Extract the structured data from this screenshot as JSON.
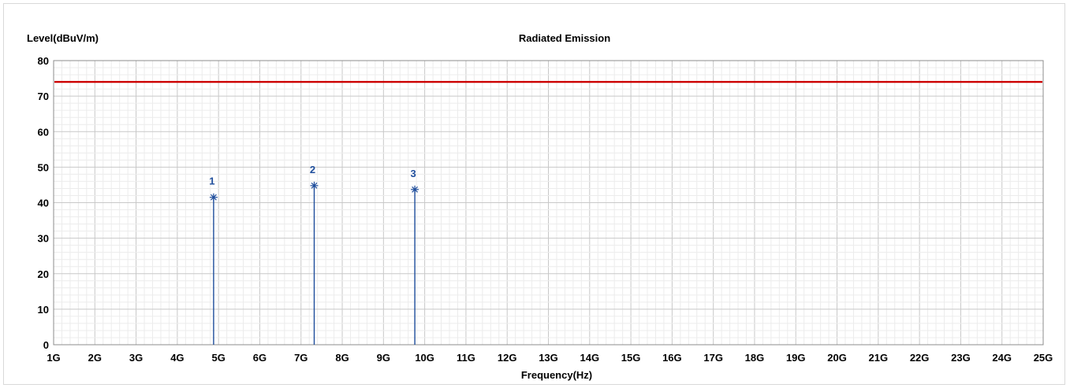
{
  "chart_data": {
    "type": "line",
    "title": "Radiated Emission",
    "ylabel": "Level(dBuV/m)",
    "xlabel": "Frequency(Hz)",
    "x_unit": "GHz",
    "xlim": [
      1,
      25
    ],
    "ylim": [
      0,
      80
    ],
    "x_ticks": [
      {
        "value": 1,
        "label": "1G"
      },
      {
        "value": 2,
        "label": "2G"
      },
      {
        "value": 3,
        "label": "3G"
      },
      {
        "value": 4,
        "label": "4G"
      },
      {
        "value": 5,
        "label": "5G"
      },
      {
        "value": 6,
        "label": "6G"
      },
      {
        "value": 7,
        "label": "7G"
      },
      {
        "value": 8,
        "label": "8G"
      },
      {
        "value": 9,
        "label": "9G"
      },
      {
        "value": 10,
        "label": "10G"
      },
      {
        "value": 11,
        "label": "11G"
      },
      {
        "value": 12,
        "label": "12G"
      },
      {
        "value": 13,
        "label": "13G"
      },
      {
        "value": 14,
        "label": "14G"
      },
      {
        "value": 15,
        "label": "15G"
      },
      {
        "value": 16,
        "label": "16G"
      },
      {
        "value": 17,
        "label": "17G"
      },
      {
        "value": 18,
        "label": "18G"
      },
      {
        "value": 19,
        "label": "19G"
      },
      {
        "value": 20,
        "label": "20G"
      },
      {
        "value": 21,
        "label": "21G"
      },
      {
        "value": 22,
        "label": "22G"
      },
      {
        "value": 23,
        "label": "23G"
      },
      {
        "value": 24,
        "label": "24G"
      },
      {
        "value": 25,
        "label": "25G"
      }
    ],
    "y_ticks": [
      {
        "value": 0,
        "label": "0"
      },
      {
        "value": 10,
        "label": "10"
      },
      {
        "value": 20,
        "label": "20"
      },
      {
        "value": 30,
        "label": "30"
      },
      {
        "value": 40,
        "label": "40"
      },
      {
        "value": 50,
        "label": "50"
      },
      {
        "value": 60,
        "label": "60"
      },
      {
        "value": 70,
        "label": "70"
      },
      {
        "value": 80,
        "label": "80"
      }
    ],
    "grid": true,
    "limit_line": {
      "value": 74,
      "color": "#cc0000"
    },
    "markers": [
      {
        "label": "1",
        "freq": 4.88,
        "level": 41.5
      },
      {
        "label": "2",
        "freq": 7.32,
        "level": 44.8
      },
      {
        "label": "3",
        "freq": 9.76,
        "level": 43.7
      }
    ],
    "marker_color": "#1f4e9c"
  }
}
